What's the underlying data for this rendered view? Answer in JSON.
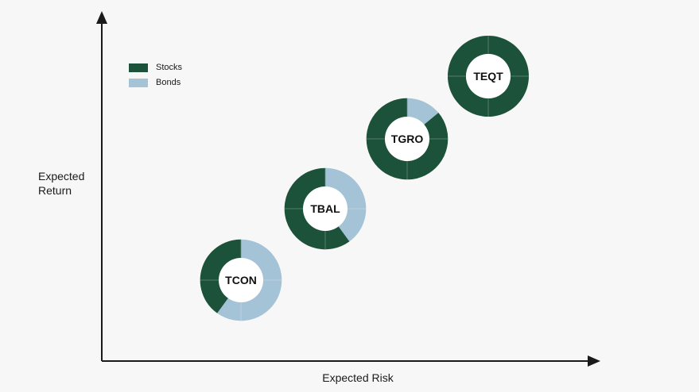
{
  "chart_data": {
    "type": "donut-scatter",
    "xlabel": "Expected Risk",
    "ylabel": "Expected Return",
    "legend": [
      {
        "name": "Stocks",
        "color": "#1b5239"
      },
      {
        "name": "Bonds",
        "color": "#a4c3d6"
      }
    ],
    "legend_position": "top-left",
    "points": [
      {
        "label": "TCON",
        "stocks_pct": 40,
        "bonds_pct": 60
      },
      {
        "label": "TBAL",
        "stocks_pct": 60,
        "bonds_pct": 40
      },
      {
        "label": "TGRO",
        "stocks_pct": 86,
        "bonds_pct": 14
      },
      {
        "label": "TEQT",
        "stocks_pct": 100,
        "bonds_pct": 0
      }
    ]
  }
}
